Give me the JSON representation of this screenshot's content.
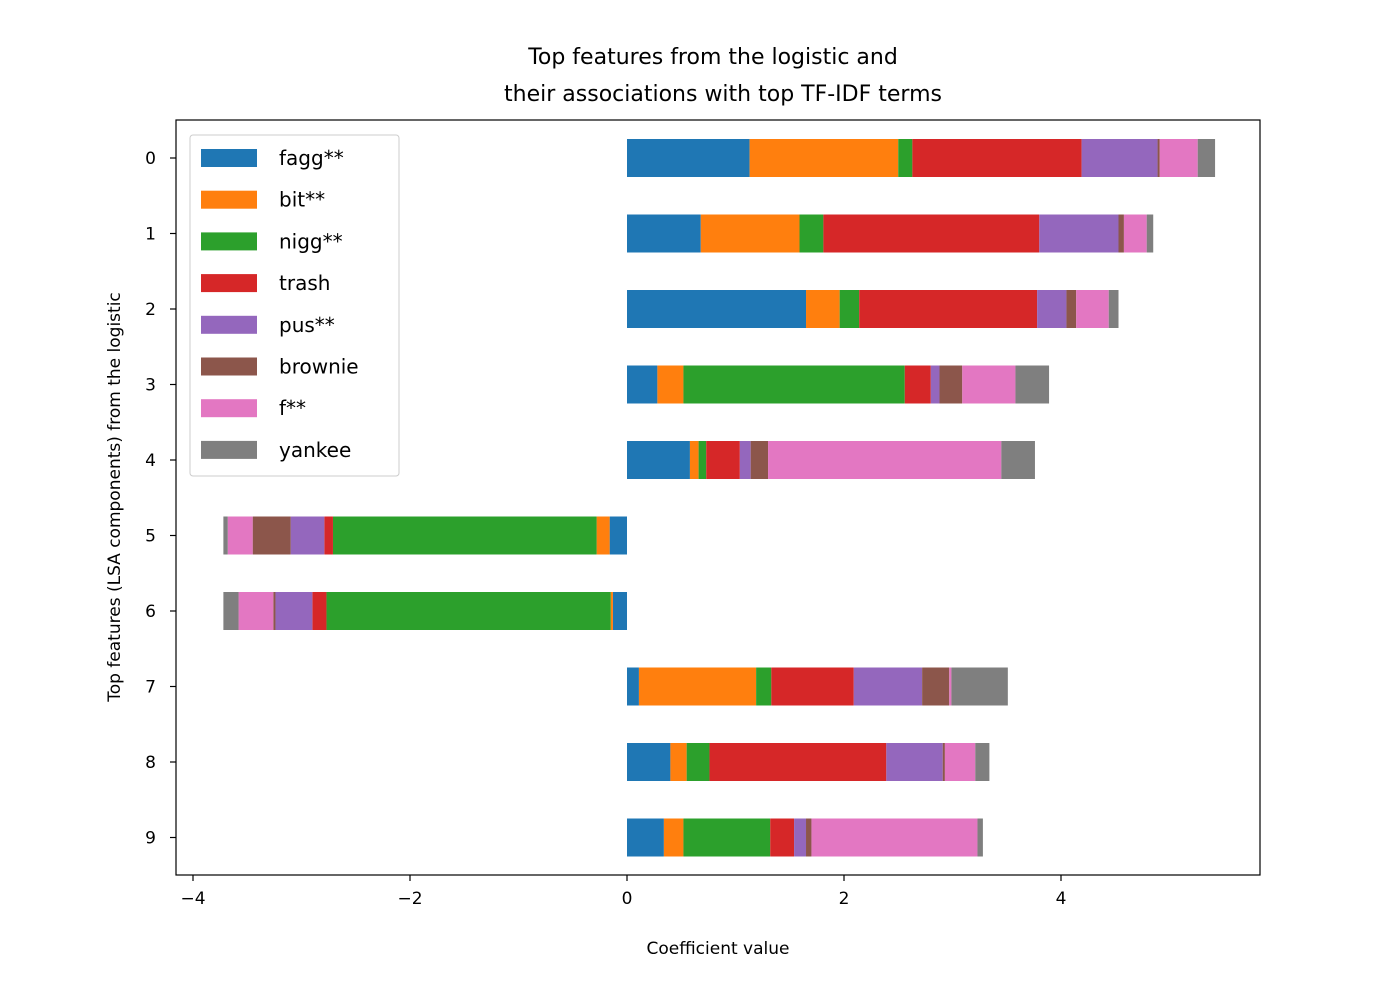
{
  "chart_data": {
    "type": "bar",
    "orientation": "horizontal",
    "stacked": true,
    "title_lines": [
      "Top features from the logistic and",
      "their associations with top TF-IDF terms"
    ],
    "xlabel": "Coefficient value",
    "ylabel": "Top features (LSA components) from the logistic",
    "xlim": [
      -4.2,
      5.85
    ],
    "xticks": [
      -4,
      -2,
      0,
      2,
      4
    ],
    "xtick_labels": [
      "−4",
      "−2",
      "0",
      "2",
      "4"
    ],
    "categories": [
      "0",
      "1",
      "2",
      "3",
      "4",
      "5",
      "6",
      "7",
      "8",
      "9"
    ],
    "legend_position": "upper-left",
    "grid": false,
    "series": [
      {
        "name": "fagg**",
        "color": "#1f77b4",
        "values": [
          1.13,
          0.68,
          1.65,
          0.28,
          0.58,
          -0.16,
          -0.13,
          0.11,
          0.4,
          0.34
        ]
      },
      {
        "name": "bit**",
        "color": "#ff7f0e",
        "values": [
          1.37,
          0.91,
          0.31,
          0.24,
          0.08,
          -0.12,
          -0.02,
          1.08,
          0.15,
          0.18
        ]
      },
      {
        "name": "nigg**",
        "color": "#2ca02c",
        "values": [
          0.13,
          0.22,
          0.18,
          2.04,
          0.07,
          -2.43,
          -2.62,
          0.14,
          0.21,
          0.8
        ]
      },
      {
        "name": "trash",
        "color": "#d62728",
        "values": [
          1.56,
          1.99,
          1.64,
          0.24,
          0.31,
          -0.08,
          -0.13,
          0.76,
          1.63,
          0.22
        ]
      },
      {
        "name": "pus**",
        "color": "#9467bd",
        "values": [
          0.7,
          0.73,
          0.27,
          0.08,
          0.1,
          -0.31,
          -0.34,
          0.63,
          0.52,
          0.11
        ]
      },
      {
        "name": "brownie",
        "color": "#8c564b",
        "values": [
          0.02,
          0.05,
          0.09,
          0.21,
          0.16,
          -0.35,
          -0.02,
          0.25,
          0.02,
          0.05
        ]
      },
      {
        "name": "f**",
        "color": "#e377c2",
        "values": [
          0.35,
          0.21,
          0.3,
          0.49,
          2.15,
          -0.23,
          -0.32,
          0.02,
          0.28,
          1.53
        ]
      },
      {
        "name": "yankee",
        "color": "#7f7f7f",
        "values": [
          0.16,
          0.06,
          0.09,
          0.31,
          0.31,
          -0.04,
          -0.14,
          0.52,
          0.13,
          0.05
        ]
      }
    ]
  }
}
